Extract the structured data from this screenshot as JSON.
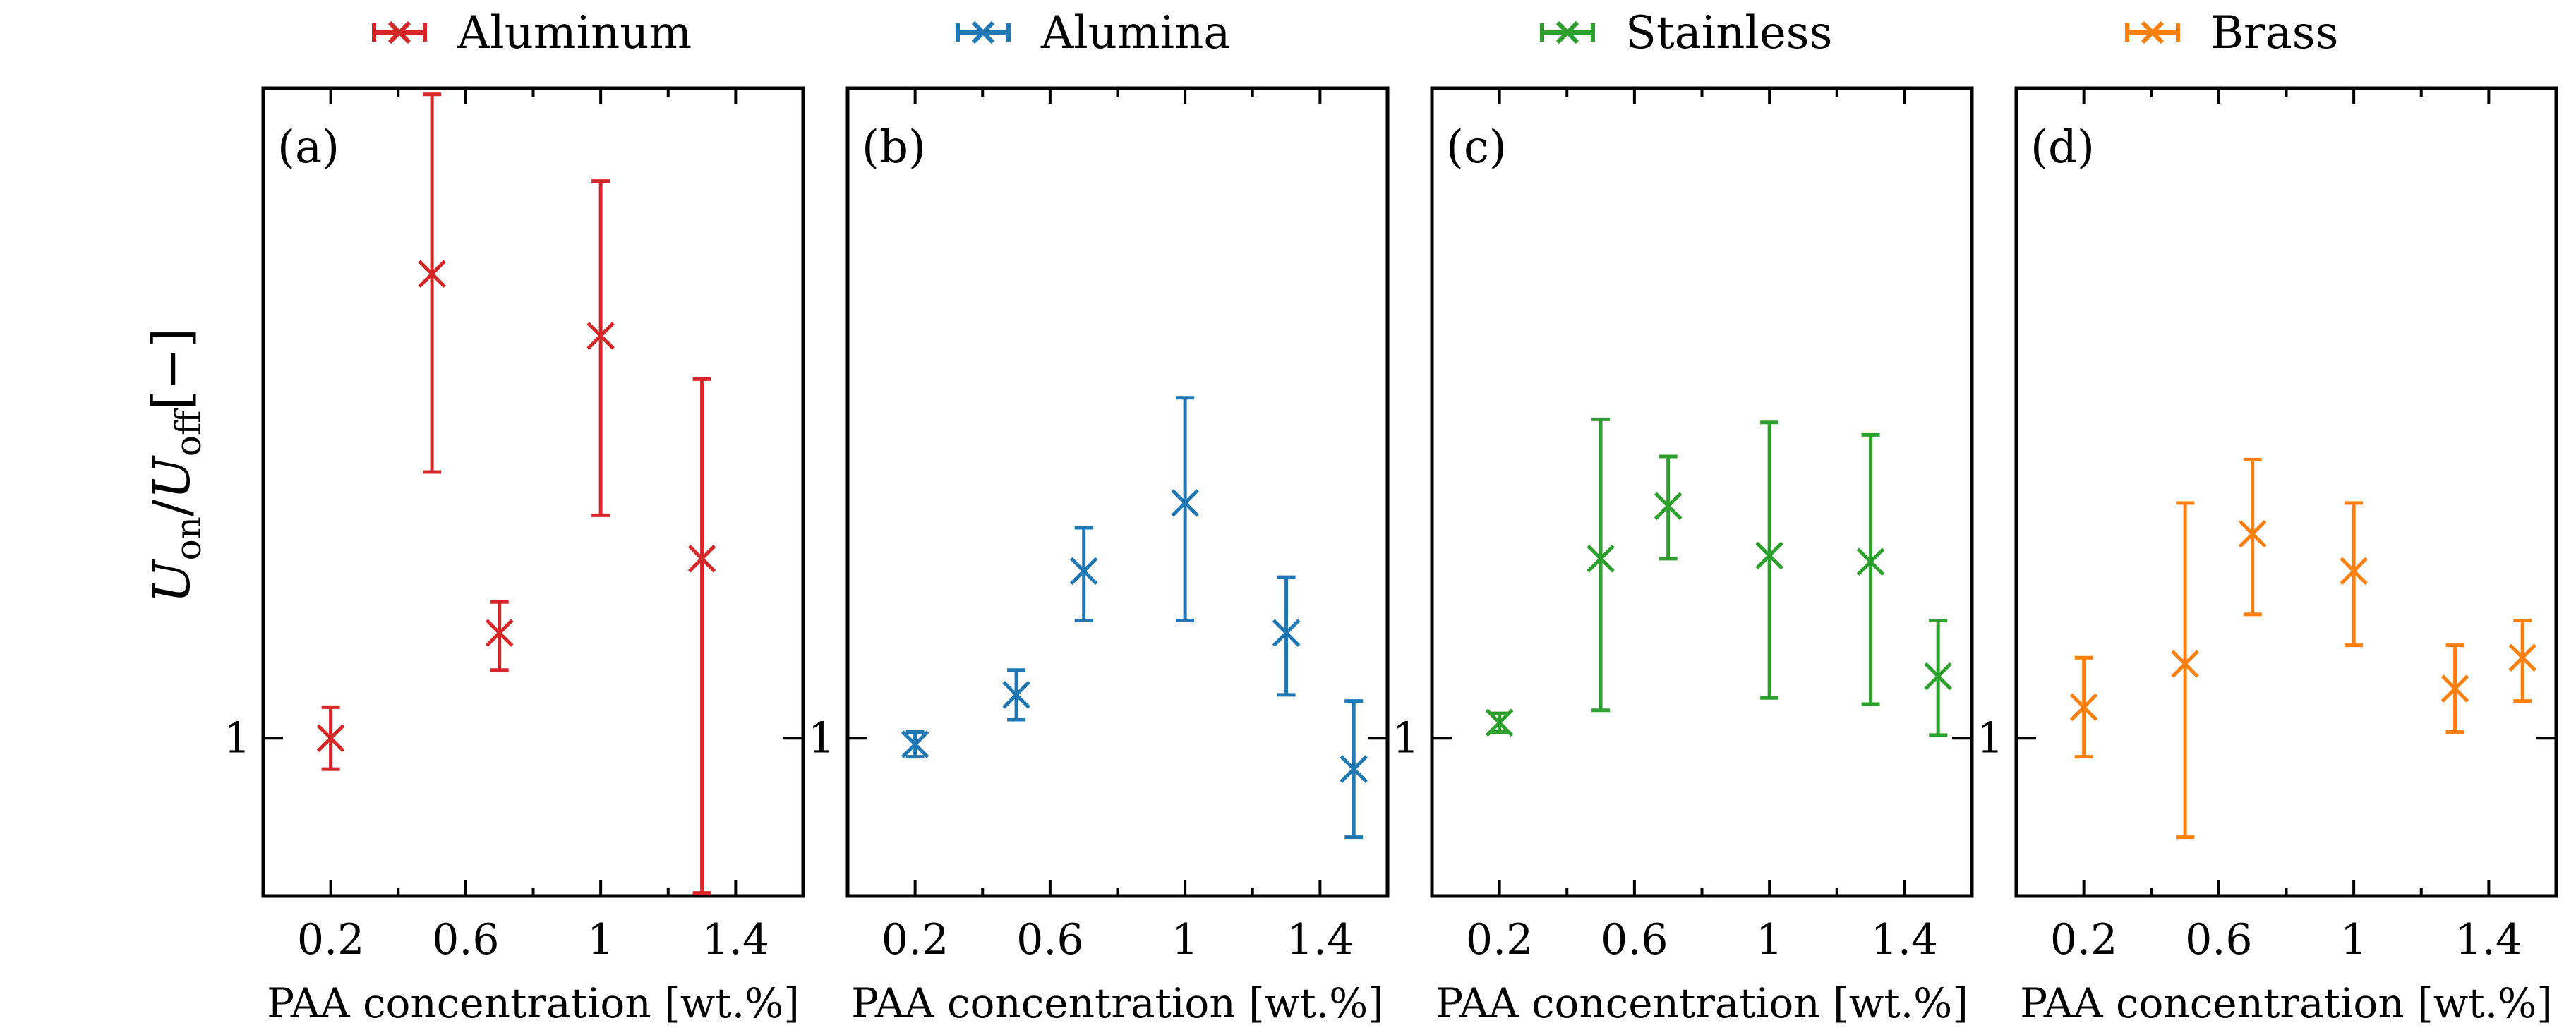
{
  "legend": [
    {
      "label": "Aluminum",
      "color": "#d62728"
    },
    {
      "label": "Alumina",
      "color": "#1f77b4"
    },
    {
      "label": "Stainless",
      "color": "#2ca02c"
    },
    {
      "label": "Brass",
      "color": "#ff7f0e"
    }
  ],
  "ylabel": "U_on/U_off[−]",
  "chart_data": [
    {
      "type": "scatter",
      "panel_label": "(a)",
      "series": [
        {
          "name": "Aluminum",
          "color": "#d62728",
          "x": [
            0.2,
            0.5,
            0.7,
            1.0,
            1.3
          ],
          "y": [
            1.0,
            1.75,
            1.17,
            1.65,
            1.29
          ],
          "yerr_low": [
            0.05,
            0.32,
            0.06,
            0.29,
            0.54
          ],
          "yerr_high": [
            0.05,
            0.29,
            0.05,
            0.25,
            0.29
          ]
        }
      ],
      "xticks": [
        "0.2",
        "0.6",
        "1",
        "1.4"
      ],
      "xtick_values": [
        0.2,
        0.6,
        1.0,
        1.4
      ],
      "yticks": [
        "1"
      ],
      "ytick_values": [
        1.0
      ],
      "xlabel": "PAA concentration [wt.%]",
      "xlim": [
        0.0,
        1.6
      ],
      "ylim": [
        0.745,
        2.05
      ],
      "marker": "x",
      "error_bars": true,
      "grid": false
    },
    {
      "type": "scatter",
      "panel_label": "(b)",
      "series": [
        {
          "name": "Alumina",
          "color": "#1f77b4",
          "x": [
            0.2,
            0.5,
            0.7,
            1.0,
            1.3,
            1.5
          ],
          "y": [
            0.99,
            1.07,
            1.27,
            1.38,
            1.17,
            0.95
          ],
          "yerr_low": [
            0.02,
            0.04,
            0.08,
            0.19,
            0.1,
            0.11
          ],
          "yerr_high": [
            0.02,
            0.04,
            0.07,
            0.17,
            0.09,
            0.11
          ]
        }
      ],
      "xticks": [
        "0.2",
        "0.6",
        "1",
        "1.4"
      ],
      "xtick_values": [
        0.2,
        0.6,
        1.0,
        1.4
      ],
      "yticks": [
        "1"
      ],
      "ytick_values": [
        1.0
      ],
      "xlabel": "PAA concentration [wt.%]",
      "xlim": [
        0.0,
        1.6
      ],
      "ylim": [
        0.745,
        2.05
      ],
      "marker": "x",
      "error_bars": true,
      "grid": false
    },
    {
      "type": "scatter",
      "panel_label": "(c)",
      "series": [
        {
          "name": "Stainless",
          "color": "#2ca02c",
          "x": [
            0.2,
            0.5,
            0.7,
            1.0,
            1.3,
            1.5
          ],
          "y": [
            1.025,
            1.29,
            1.375,
            1.295,
            1.285,
            1.1
          ],
          "yerr_low": [
            0.015,
            0.245,
            0.085,
            0.23,
            0.23,
            0.095
          ],
          "yerr_high": [
            0.015,
            0.225,
            0.08,
            0.215,
            0.205,
            0.09
          ]
        }
      ],
      "xticks": [
        "0.2",
        "0.6",
        "1",
        "1.4"
      ],
      "xtick_values": [
        0.2,
        0.6,
        1.0,
        1.4
      ],
      "yticks": [
        "1"
      ],
      "ytick_values": [
        1.0
      ],
      "xlabel": "PAA concentration [wt.%]",
      "xlim": [
        0.0,
        1.6
      ],
      "ylim": [
        0.745,
        2.05
      ],
      "marker": "x",
      "error_bars": true,
      "grid": false
    },
    {
      "type": "scatter",
      "panel_label": "(d)",
      "series": [
        {
          "name": "Brass",
          "color": "#ff7f0e",
          "x": [
            0.2,
            0.5,
            0.7,
            1.0,
            1.3,
            1.5
          ],
          "y": [
            1.05,
            1.12,
            1.33,
            1.27,
            1.08,
            1.13
          ],
          "yerr_low": [
            0.08,
            0.28,
            0.13,
            0.12,
            0.07,
            0.07
          ],
          "yerr_high": [
            0.08,
            0.26,
            0.12,
            0.11,
            0.07,
            0.06
          ]
        }
      ],
      "xticks": [
        "0.2",
        "0.6",
        "1",
        "1.4"
      ],
      "xtick_values": [
        0.2,
        0.6,
        1.0,
        1.4
      ],
      "yticks": [
        "1"
      ],
      "ytick_values": [
        1.0
      ],
      "xlabel": "PAA concentration [wt.%]",
      "xlim": [
        0.0,
        1.6
      ],
      "ylim": [
        0.745,
        2.05
      ],
      "marker": "x",
      "error_bars": true,
      "grid": false
    }
  ]
}
